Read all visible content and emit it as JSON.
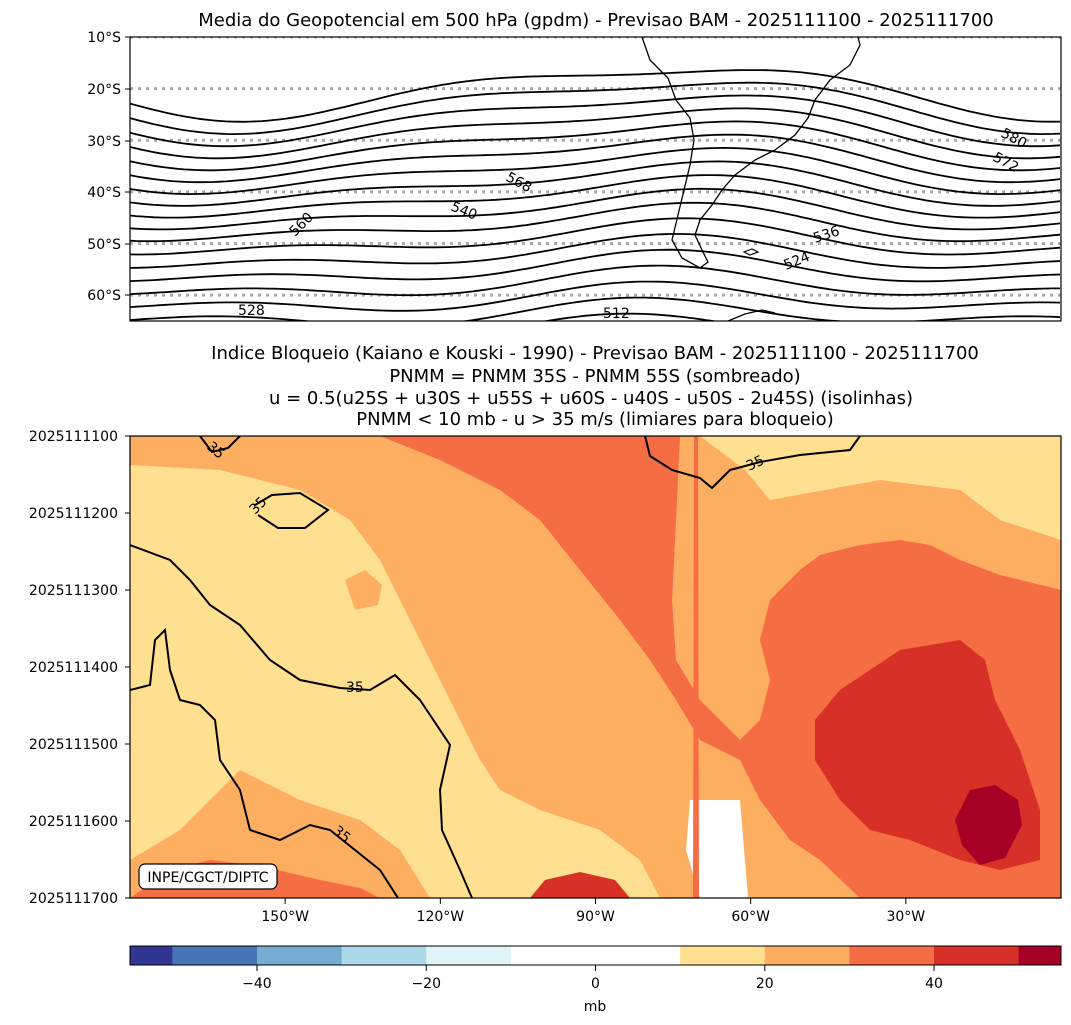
{
  "chart_data": [
    {
      "type": "contour-map",
      "title": "Media do Geopotencial em 500 hPa (gpdm) - Previsao BAM - 2025111100 - 2025111700",
      "units": "gpdm",
      "lat_range": [
        -65,
        -10
      ],
      "lon_range": [
        -180,
        0
      ],
      "y_ticks": [
        "10°S",
        "20°S",
        "30°S",
        "40°S",
        "50°S",
        "60°S"
      ],
      "y_tick_values": [
        -10,
        -20,
        -30,
        -40,
        -50,
        -60
      ],
      "gridlines": "dotted parallels every 10°",
      "contour_interval": 4,
      "contour_labels": [
        "580",
        "572",
        "568",
        "560",
        "540",
        "536",
        "528",
        "524",
        "512"
      ]
    },
    {
      "type": "hovmoller-contourf",
      "title_lines": [
        "Indice Bloqueio (Kaiano e Kouski - 1990) - Previsao BAM - 2025111100 - 2025111700",
        "PNMM = PNMM 35S - PNMM 55S (sombreado)",
        "u = 0.5(u25S + u30S + u55S + u60S - u40S - u50S - 2u45S) (isolinhas)",
        "PNMM < 10 mb - u > 35 m/s (limiares para bloqueio)"
      ],
      "x_range": [
        -180,
        0
      ],
      "x_ticks": [
        "150°W",
        "120°W",
        "90°W",
        "60°W",
        "30°W"
      ],
      "x_tick_values": [
        -150,
        -120,
        -90,
        -60,
        -30
      ],
      "y_ticks": [
        "2025111100",
        "2025111200",
        "2025111300",
        "2025111400",
        "2025111500",
        "2025111600",
        "2025111700"
      ],
      "isoline_value": "35",
      "isoline_labels": [
        "35",
        "35",
        "35",
        "35",
        "35"
      ],
      "credit": "INPE/CGCT/DIPTC"
    },
    {
      "type": "colorbar",
      "label": "mb",
      "range": [
        -55,
        55
      ],
      "levels": [
        -55,
        -50,
        -40,
        -30,
        -20,
        -10,
        10,
        20,
        30,
        40,
        50,
        55
      ],
      "colors": [
        "#313695",
        "#4575b4",
        "#74add1",
        "#abd9e9",
        "#e0f3f8",
        "#ffffff",
        "#fee090",
        "#fdae61",
        "#f46d43",
        "#d73027",
        "#a50026"
      ],
      "tick_labels": [
        "−40",
        "−20",
        "0",
        "20",
        "40"
      ],
      "tick_values": [
        -40,
        -20,
        0,
        20,
        40
      ]
    }
  ]
}
